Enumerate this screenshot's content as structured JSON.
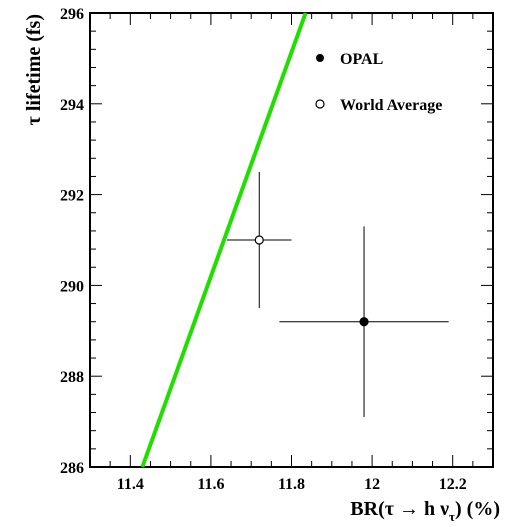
{
  "chart_data": {
    "type": "scatter",
    "xlabel": "BR(τ → h ν_τ)  (%)",
    "xlabel_parts": {
      "main": "BR(τ → h ν",
      "sub": "τ",
      "tail": ")  (%)"
    },
    "ylabel": "τ lifetime  (fs)",
    "xlim": [
      11.3,
      12.3
    ],
    "ylim": [
      286,
      296
    ],
    "x_ticks": [
      "11.4",
      "11.6",
      "11.8",
      "12",
      "12.2"
    ],
    "x_tick_values": [
      11.4,
      11.6,
      11.8,
      12.0,
      12.2
    ],
    "y_ticks": [
      "286",
      "288",
      "290",
      "292",
      "294",
      "296"
    ],
    "y_tick_values": [
      286,
      288,
      290,
      292,
      294,
      296
    ],
    "grid": false,
    "legend_position": "top-right",
    "series": [
      {
        "name": "OPAL",
        "marker": "filled-circle",
        "x": 11.98,
        "y": 289.2,
        "x_err": 0.21,
        "y_err": 2.1
      },
      {
        "name": "World Average",
        "marker": "open-circle",
        "x": 11.72,
        "y": 291.0,
        "x_err": 0.08,
        "y_err": 1.5
      }
    ],
    "line": {
      "color": "#22dd00",
      "points": [
        [
          11.43,
          286.0
        ],
        [
          11.835,
          296.0
        ]
      ]
    }
  }
}
